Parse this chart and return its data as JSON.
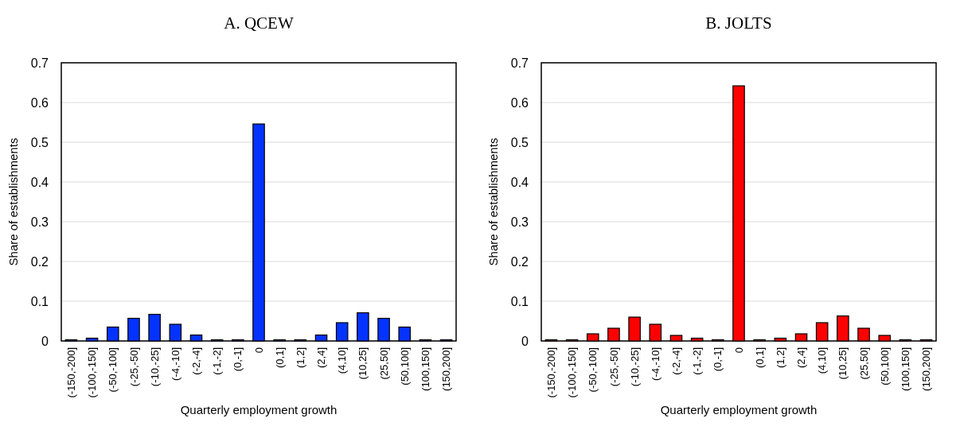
{
  "chart_data": [
    {
      "type": "bar",
      "title": "A. QCEW",
      "xlabel": "Quarterly employment growth",
      "ylabel": "Share of establishments",
      "categories": [
        "(-150,-200]",
        "(-100,-150]",
        "(-50,-100]",
        "(-25,-50]",
        "(-10,-25]",
        "(-4,-10]",
        "(-2,-4]",
        "(-1,-2]",
        "(0,-1]",
        "0",
        "(0,1]",
        "(1,2]",
        "(2,4]",
        "(4,10]",
        "(10,25]",
        "(25,50]",
        "(50,100]",
        "(100,150]",
        "(150,200]"
      ],
      "series": [
        {
          "color": "#0433ff",
          "values": [
            0.003,
            0.007,
            0.035,
            0.057,
            0.067,
            0.042,
            0.015,
            0.003,
            0.003,
            0.546,
            0.003,
            0.003,
            0.015,
            0.046,
            0.071,
            0.057,
            0.035,
            0.003,
            0.003
          ]
        }
      ],
      "ylim": [
        0,
        0.7
      ],
      "yticks": [
        0,
        0.1,
        0.2,
        0.3,
        0.4,
        0.5,
        0.6,
        0.7
      ],
      "grid": "y"
    },
    {
      "type": "bar",
      "title": "B. JOLTS",
      "xlabel": "Quarterly employment growth",
      "ylabel": "Share of establishments",
      "categories": [
        "(-150,-200]",
        "(-100,-150]",
        "(-50,-100]",
        "(-25,-50]",
        "(-10,-25]",
        "(-4,-10]",
        "(-2,-4]",
        "(-1,-2]",
        "(0,-1]",
        "0",
        "(0,1]",
        "(1,2]",
        "(2,4]",
        "(4,10]",
        "(10,25]",
        "(25,50]",
        "(50,100]",
        "(100,150]",
        "(150,200]"
      ],
      "series": [
        {
          "color": "#ff0000",
          "values": [
            0.003,
            0.003,
            0.018,
            0.032,
            0.06,
            0.042,
            0.014,
            0.007,
            0.003,
            0.642,
            0.003,
            0.007,
            0.018,
            0.046,
            0.063,
            0.032,
            0.014,
            0.003,
            0.003
          ]
        }
      ],
      "ylim": [
        0,
        0.7
      ],
      "yticks": [
        0,
        0.1,
        0.2,
        0.3,
        0.4,
        0.5,
        0.6,
        0.7
      ],
      "grid": "y"
    }
  ]
}
